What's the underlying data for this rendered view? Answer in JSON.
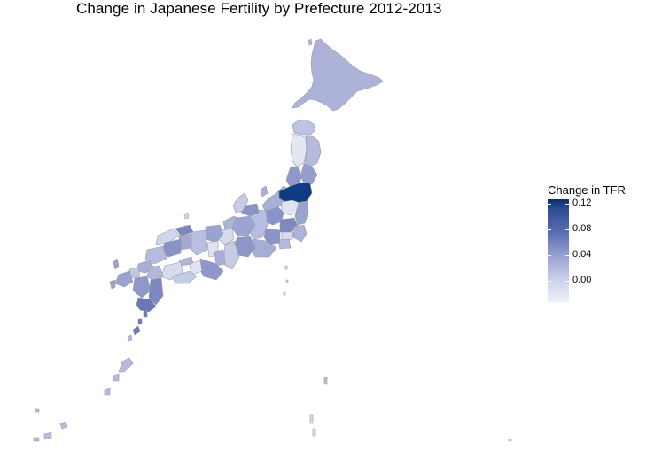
{
  "title": "Change in Japanese Fertility by Prefecture 2012-2013",
  "legend": {
    "title": "Change in TFR",
    "ticks": [
      "0.12",
      "0.08",
      "0.04",
      "0.00"
    ]
  },
  "colors": {
    "high": "#08306b",
    "low": "#eef0fa",
    "border": "#9a9a9a"
  }
}
